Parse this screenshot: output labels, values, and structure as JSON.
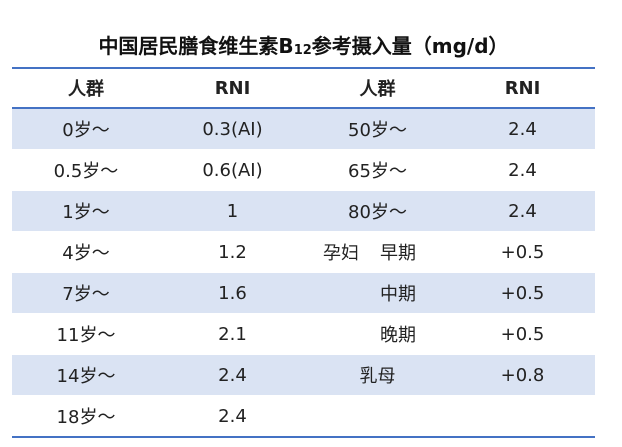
{
  "title": {
    "main": "中国居民膳食维生素B",
    "sub": "12",
    "rest": "参考摄入量（mg/d）"
  },
  "table": {
    "header": [
      "人群",
      "RNI",
      "人群",
      "RNI"
    ],
    "rows": [
      [
        "0岁～",
        "0.3(AI)",
        "50岁～",
        "2.4"
      ],
      [
        "0.5岁～",
        "0.6(AI)",
        "65岁～",
        "2.4"
      ],
      [
        "1岁～",
        "1",
        "80岁～",
        "2.4"
      ],
      [
        "4岁～",
        "1.2",
        [
          "孕妇",
          "早期"
        ],
        "+0.5"
      ],
      [
        "7岁～",
        "1.6",
        [
          "中期"
        ],
        "+0.5"
      ],
      [
        "11岁～",
        "2.1",
        [
          "晚期"
        ],
        "+0.5"
      ],
      [
        "14岁～",
        "2.4",
        "乳母",
        "+0.8"
      ],
      [
        "18岁～",
        "2.4"
      ]
    ]
  }
}
